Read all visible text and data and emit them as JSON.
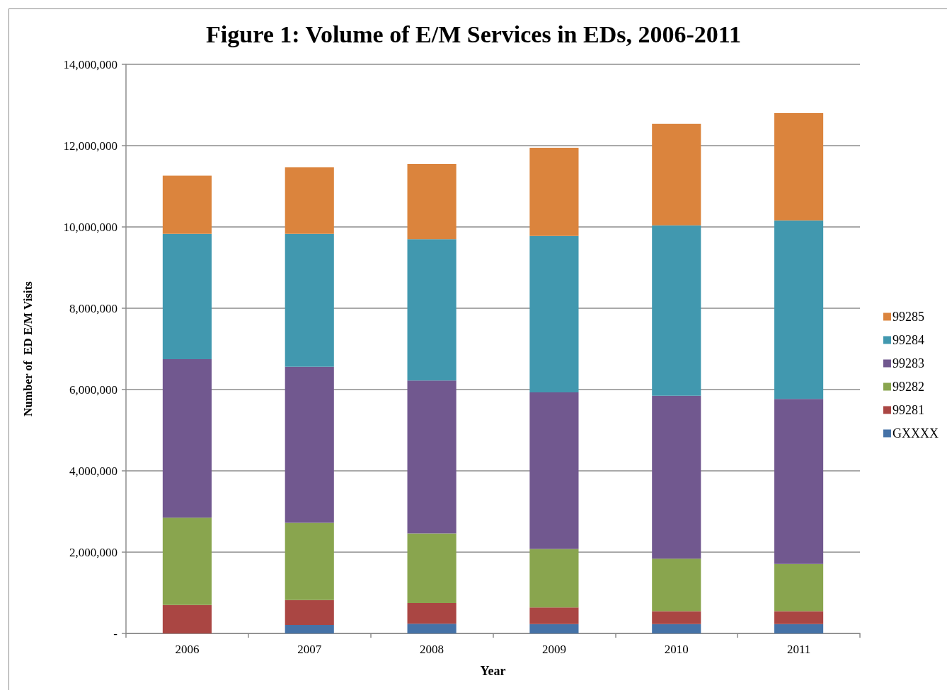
{
  "chart_data": {
    "type": "bar",
    "title": "Figure 1: Volume of E/M Services in EDs, 2006-2011",
    "xlabel": "Year",
    "ylabel": "Number of  ED E/M Visits",
    "categories": [
      "2006",
      "2007",
      "2008",
      "2009",
      "2010",
      "2011"
    ],
    "stacked": true,
    "series": [
      {
        "name": "GXXXX",
        "color": "#4572a7",
        "values": [
          0,
          210000,
          240000,
          230000,
          230000,
          230000
        ]
      },
      {
        "name": "99281",
        "color": "#aa4643",
        "values": [
          700000,
          610000,
          510000,
          410000,
          320000,
          320000
        ]
      },
      {
        "name": "99282",
        "color": "#89a54e",
        "values": [
          2150000,
          1900000,
          1710000,
          1440000,
          1290000,
          1160000
        ]
      },
      {
        "name": "99283",
        "color": "#71588f",
        "values": [
          3900000,
          3840000,
          3760000,
          3850000,
          4010000,
          4060000
        ]
      },
      {
        "name": "99284",
        "color": "#4198af",
        "values": [
          3080000,
          3270000,
          3480000,
          3850000,
          4190000,
          4390000
        ]
      },
      {
        "name": "99285",
        "color": "#db843d",
        "values": [
          1430000,
          1640000,
          1850000,
          2170000,
          2500000,
          2640000
        ]
      }
    ],
    "ylim": [
      0,
      14000000
    ],
    "yticks": [
      {
        "value": 0,
        "label": "-"
      },
      {
        "value": 2000000,
        "label": "2,000,000"
      },
      {
        "value": 4000000,
        "label": "4,000,000"
      },
      {
        "value": 6000000,
        "label": "6,000,000"
      },
      {
        "value": 8000000,
        "label": "8,000,000"
      },
      {
        "value": 10000000,
        "label": "10,000,000"
      },
      {
        "value": 12000000,
        "label": "12,000,000"
      },
      {
        "value": 14000000,
        "label": "14,000,000"
      }
    ],
    "grid": "y",
    "legend": "right"
  }
}
